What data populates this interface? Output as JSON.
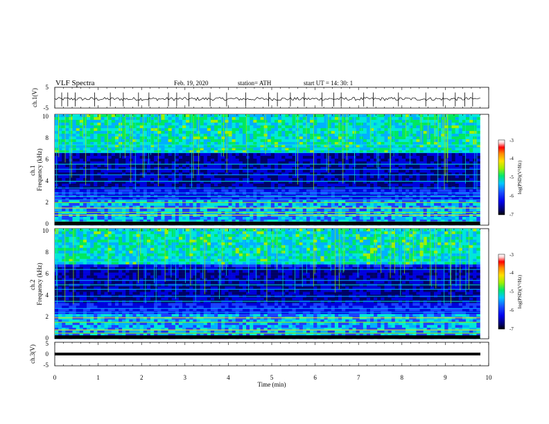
{
  "header": {
    "title": "VLF  Spectra",
    "date": "Feb. 19, 2020",
    "station": "station= ATH",
    "start_time": "start  UT  =   14: 30: 1"
  },
  "colorscale": [
    "#000000",
    "#000066",
    "#0000dd",
    "#1a40ff",
    "#00b0ff",
    "#00e8d8",
    "#00e860",
    "#a0f000",
    "#ffe000",
    "#ff8800",
    "#ff0000",
    "#ffd8d8",
    "#ffffff"
  ],
  "chart_data": [
    {
      "type": "line",
      "name": "ch1-waveform",
      "ylabel": "ch.1(V)",
      "ylim": [
        -5,
        5
      ],
      "yticks": [
        "5",
        "-5"
      ],
      "xlim": [
        0,
        10
      ],
      "baseline_value": -0.6,
      "spikes_min": [
        0.16,
        0.3,
        0.47,
        0.92,
        1.28,
        1.58,
        1.93,
        2.17,
        2.62,
        2.81,
        3.09,
        3.58,
        3.96,
        4.4,
        4.93,
        5.13,
        5.43,
        5.75,
        6.16,
        6.43,
        6.6,
        7.12,
        7.34,
        7.92,
        8.55,
        8.95,
        9.23,
        9.45,
        9.63
      ]
    },
    {
      "type": "heatmap",
      "name": "ch1-spectrogram",
      "ylabel": "ch.1\nFrequency  (kHz)",
      "xlim": [
        0,
        9.8
      ],
      "ylim": [
        0,
        10
      ],
      "yticks": [
        "10",
        "8",
        "6",
        "4",
        "2",
        "0"
      ],
      "colorbar": {
        "label": "log(PSD)(V²/Hz)",
        "ticks": [
          "-3",
          "-4",
          "-5",
          "-6",
          "-7"
        ],
        "range": [
          -7,
          -3
        ]
      },
      "emission_band_khz": [
        6.5,
        10
      ],
      "bright_lines_khz": [
        0.3,
        0.9,
        1.15,
        1.55,
        2.05,
        2.3,
        2.6,
        2.9,
        3.35,
        3.95,
        4.55,
        5.05,
        5.5,
        6.55,
        7.0,
        7.25
      ]
    },
    {
      "type": "heatmap",
      "name": "ch2-spectrogram",
      "ylabel": "ch.2\nFrequency  (kHz)",
      "xlim": [
        0,
        9.8
      ],
      "ylim": [
        0,
        10
      ],
      "yticks": [
        "10",
        "8",
        "6",
        "4",
        "2",
        "0"
      ],
      "colorbar": {
        "label": "log(PSD)(V²/Hz)",
        "ticks": [
          "-3",
          "-4",
          "-5",
          "-6",
          "-7"
        ],
        "range": [
          -7,
          -3
        ]
      },
      "emission_band_khz": [
        6.8,
        10
      ],
      "bright_lines_khz": [
        0.5,
        0.8,
        1.5,
        1.9,
        2.4,
        2.75,
        3.4,
        3.85,
        4.5,
        4.9,
        5.3,
        6.3,
        7.0
      ]
    },
    {
      "type": "line",
      "name": "ch3-waveform",
      "ylabel": "ch.3(V)",
      "ylim": [
        -5,
        5
      ],
      "yticks": [
        "5",
        "0",
        "-5"
      ],
      "xlim": [
        0,
        10
      ],
      "baseline_value": 0,
      "xlabel": "Time  (min)",
      "xticks": [
        "0",
        "1",
        "2",
        "3",
        "4",
        "5",
        "6",
        "7",
        "8",
        "9",
        "10"
      ]
    }
  ]
}
